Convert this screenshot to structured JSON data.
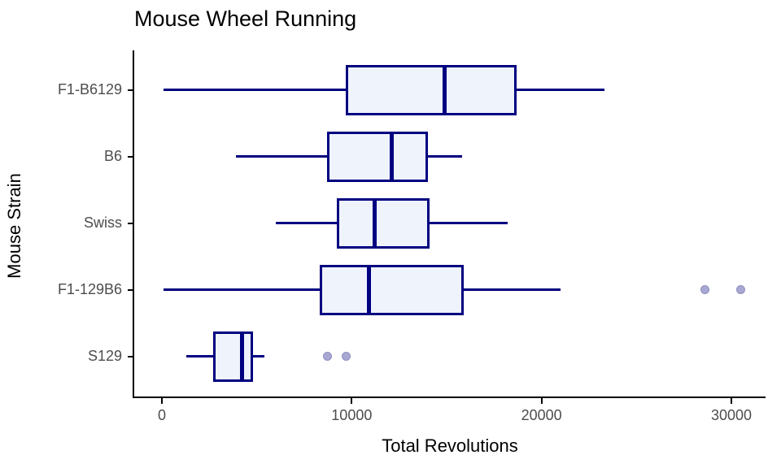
{
  "title": "Mouse Wheel Running",
  "x_axis": {
    "label": "Total Revolutions",
    "tick_labels": [
      "0",
      "10000",
      "20000",
      "30000"
    ]
  },
  "y_axis": {
    "label": "Mouse Strain"
  },
  "colors": {
    "box_border": "#000080",
    "box_fill": "#EFF3FC",
    "median": "#000080",
    "whisker": "#000080",
    "outlier_fill": "#A8A8D3",
    "outlier_stroke": "#8F8FBF",
    "axis_line": "#000000",
    "tick_label": "#4d4d4d",
    "title_text": "#000000"
  },
  "chart_data": {
    "type": "boxplot",
    "orientation": "horizontal",
    "title": "Mouse Wheel Running",
    "xlabel": "Total Revolutions",
    "ylabel": "Mouse Strain",
    "xlim": [
      -1500,
      31800
    ],
    "x_ticks": [
      0,
      10000,
      20000,
      30000
    ],
    "grid": false,
    "legend": "none",
    "categories": [
      "F1-B6129",
      "B6",
      "Swiss",
      "F1-129B6",
      "S129"
    ],
    "series": [
      {
        "category": "F1-B6129",
        "min": 100,
        "q1": 9700,
        "median": 14900,
        "q3": 18700,
        "max": 23300,
        "outliers": []
      },
      {
        "category": "B6",
        "min": 3900,
        "q1": 8700,
        "median": 12100,
        "q3": 14000,
        "max": 15800,
        "outliers": []
      },
      {
        "category": "Swiss",
        "min": 6000,
        "q1": 9200,
        "median": 11200,
        "q3": 14100,
        "max": 18200,
        "outliers": []
      },
      {
        "category": "F1-129B6",
        "min": 100,
        "q1": 8300,
        "median": 10900,
        "q3": 15900,
        "max": 21000,
        "outliers": [
          28600,
          30500
        ]
      },
      {
        "category": "S129",
        "min": 1300,
        "q1": 2700,
        "median": 4200,
        "q3": 4800,
        "max": 5400,
        "outliers": [
          8700,
          9700
        ]
      }
    ]
  }
}
